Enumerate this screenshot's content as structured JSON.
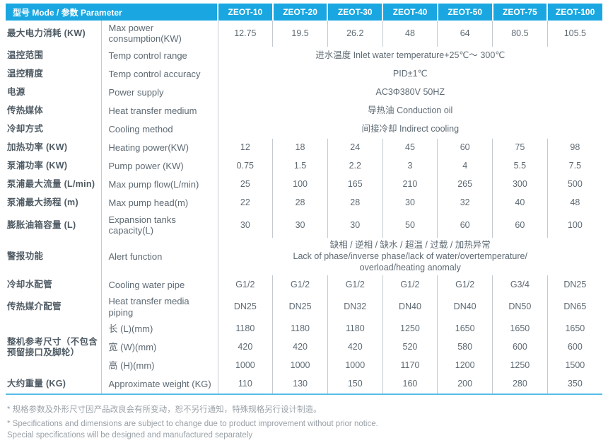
{
  "table": {
    "header": {
      "model_label": "型号 Mode / 参数 Parameter",
      "columns": [
        "ZEOT-10",
        "ZEOT-20",
        "ZEOT-30",
        "ZEOT-40",
        "ZEOT-50",
        "ZEOT-75",
        "ZEOT-100"
      ]
    },
    "rows": [
      {
        "zh": "最大电力消耗 (KW)",
        "en": "Max power consumption(KW)",
        "values": [
          "12.75",
          "19.5",
          "26.2",
          "48",
          "64",
          "80.5",
          "105.5"
        ]
      },
      {
        "zh": "温控范围",
        "en": "Temp control range",
        "merged": "进水温度 Inlet water temperature+25℃～ 300℃"
      },
      {
        "zh": "温控精度",
        "en": "Temp control accuracy",
        "merged": "PID±1℃"
      },
      {
        "zh": "电源",
        "en": "Power supply",
        "merged": "AC3Φ380V 50HZ"
      },
      {
        "zh": "传热媒体",
        "en": "Heat transfer medium",
        "merged": "导热油 Conduction oil"
      },
      {
        "zh": "冷却方式",
        "en": "Cooling method",
        "merged": "间接冷却 Indirect cooling"
      },
      {
        "zh": "加热功率 (KW)",
        "en": "Heating power(KW)",
        "values": [
          "12",
          "18",
          "24",
          "45",
          "60",
          "75",
          "98"
        ]
      },
      {
        "zh": "泵浦功率 (KW)",
        "en": "Pump power (KW)",
        "values": [
          "0.75",
          "1.5",
          "2.2",
          "3",
          "4",
          "5.5",
          "7.5"
        ]
      },
      {
        "zh": "泵浦最大流量 (L/min)",
        "en": "Max pump flow(L/min)",
        "values": [
          "25",
          "100",
          "165",
          "210",
          "265",
          "300",
          "500"
        ]
      },
      {
        "zh": "泵浦最大扬程 (m)",
        "en": "Max pump head(m)",
        "values": [
          "22",
          "28",
          "28",
          "30",
          "32",
          "40",
          "48"
        ]
      },
      {
        "zh": "膨胀油箱容量 (L)",
        "en": "Expansion tanks capacity(L)",
        "values": [
          "30",
          "30",
          "30",
          "50",
          "60",
          "60",
          "100"
        ]
      },
      {
        "zh": "警报功能",
        "en": "Alert function",
        "merged": "缺相 / 逆相 / 缺水 / 超温 / 过载 / 加热异常\nLack of phase/inverse phase/lack of water/overtemperature/\noverload/heating anomaly"
      },
      {
        "zh": "冷却水配管",
        "en": "Cooling water pipe",
        "values": [
          "G1/2",
          "G1/2",
          "G1/2",
          "G1/2",
          "G1/2",
          "G3/4",
          "DN25"
        ]
      },
      {
        "zh": "传热媒介配管",
        "en": "Heat transfer media piping",
        "values": [
          "DN25",
          "DN25",
          "DN32",
          "DN40",
          "DN40",
          "DN50",
          "DN65"
        ]
      },
      {
        "zh": "整机参考尺寸（不包含预留接口及脚轮）",
        "zh_rowspan": 3,
        "en": "长 (L)(mm)",
        "values": [
          "1180",
          "1180",
          "1180",
          "1250",
          "1650",
          "1650",
          "1650"
        ]
      },
      {
        "zh": null,
        "en": "宽 (W)(mm)",
        "values": [
          "420",
          "420",
          "420",
          "520",
          "580",
          "600",
          "600"
        ]
      },
      {
        "zh": null,
        "en": "高 (H)(mm)",
        "values": [
          "1000",
          "1000",
          "1000",
          "1170",
          "1200",
          "1250",
          "1500"
        ]
      },
      {
        "zh": "大约重量 (KG)",
        "en": "Approximate weight (KG)",
        "values": [
          "110",
          "130",
          "150",
          "160",
          "200",
          "280",
          "350"
        ]
      }
    ]
  },
  "notes": [
    "* 规格参数及外形尺寸因产品改良会有所变动，恕不另行通知，特殊规格另行设计制造。",
    "* Specifications and dimensions are subject to change due to product improvement without prior notice. Special specifications will be designed and manufactured separately"
  ],
  "colors": {
    "header_background": "#1AA7E1",
    "header_text": "#FFFFFF",
    "bottom_rule": "#57BEE6",
    "grid_line": "#C3CAD0",
    "body_text": "#5E6A73",
    "label_text": "#4F5B64",
    "note_text": "#9AA1A7"
  }
}
